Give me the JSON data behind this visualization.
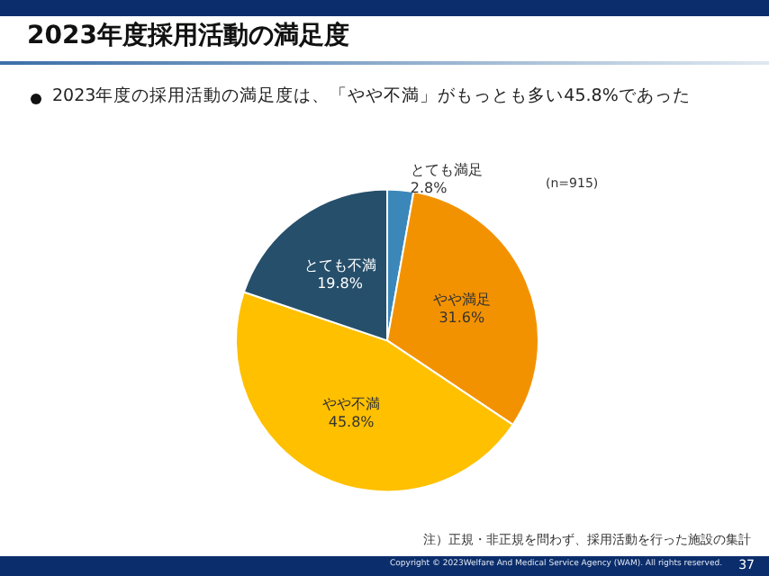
{
  "chart_data": {
    "type": "pie",
    "title": "2023年度採用活動の満足度",
    "subtitle": "2023年度の採用活動の満足度は、「やや不満」がもっとも多い45.8%であった",
    "categories": [
      "とても満足",
      "やや満足",
      "やや不満",
      "とても不満"
    ],
    "values": [
      2.8,
      31.6,
      45.8,
      19.8
    ],
    "colors": [
      "#3b87b9",
      "#f39200",
      "#ffc000",
      "#264f6b"
    ],
    "value_labels": [
      "2.8%",
      "31.6%",
      "45.8%",
      "19.8%"
    ],
    "annotations": [
      "(n=915)",
      "注）正規・非正規を問わず、採用活動を行った施設の集計",
      "Copyright © 2023Welfare And Medical Service Agency (WAM). All rights reserved.",
      "37"
    ]
  }
}
